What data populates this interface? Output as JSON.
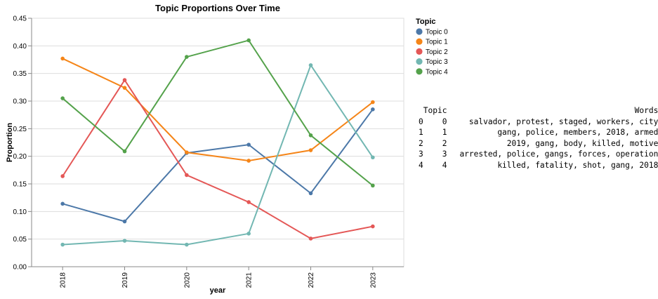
{
  "chart_data": {
    "type": "line",
    "title": "Topic Proportions Over Time",
    "xlabel": "year",
    "ylabel": "Proportion",
    "categories": [
      "2018",
      "2019",
      "2020",
      "2021",
      "2022",
      "2023"
    ],
    "ylim": [
      0,
      0.45
    ],
    "yticks": [
      "0.00",
      "0.05",
      "0.10",
      "0.15",
      "0.20",
      "0.25",
      "0.30",
      "0.35",
      "0.40",
      "0.45"
    ],
    "grid": true,
    "legend": {
      "title": "Topic",
      "placement": "top-right"
    },
    "series": [
      {
        "name": "Topic 0",
        "color": "#4c78a8",
        "values": [
          0.114,
          0.082,
          0.206,
          0.221,
          0.133,
          0.285
        ]
      },
      {
        "name": "Topic 1",
        "color": "#f58518",
        "values": [
          0.377,
          0.324,
          0.207,
          0.192,
          0.211,
          0.298
        ]
      },
      {
        "name": "Topic 2",
        "color": "#e45756",
        "values": [
          0.164,
          0.338,
          0.166,
          0.117,
          0.051,
          0.073
        ]
      },
      {
        "name": "Topic 3",
        "color": "#72b7b2",
        "values": [
          0.04,
          0.047,
          0.04,
          0.06,
          0.365,
          0.198
        ]
      },
      {
        "name": "Topic 4",
        "color": "#54a24b",
        "values": [
          0.305,
          0.209,
          0.38,
          0.41,
          0.238,
          0.147
        ]
      }
    ]
  },
  "table": {
    "columns": [
      "Topic",
      "Words"
    ],
    "rows": [
      {
        "index": "0",
        "topic": "0",
        "words": "salvador, protest, staged, workers, city"
      },
      {
        "index": "1",
        "topic": "1",
        "words": "gang, police, members, 2018, armed"
      },
      {
        "index": "2",
        "topic": "2",
        "words": "2019, gang, body, killed, motive"
      },
      {
        "index": "3",
        "topic": "3",
        "words": "arrested, police, gangs, forces, operation"
      },
      {
        "index": "4",
        "topic": "4",
        "words": "killed, fatality, shot, gang, 2018"
      }
    ]
  }
}
